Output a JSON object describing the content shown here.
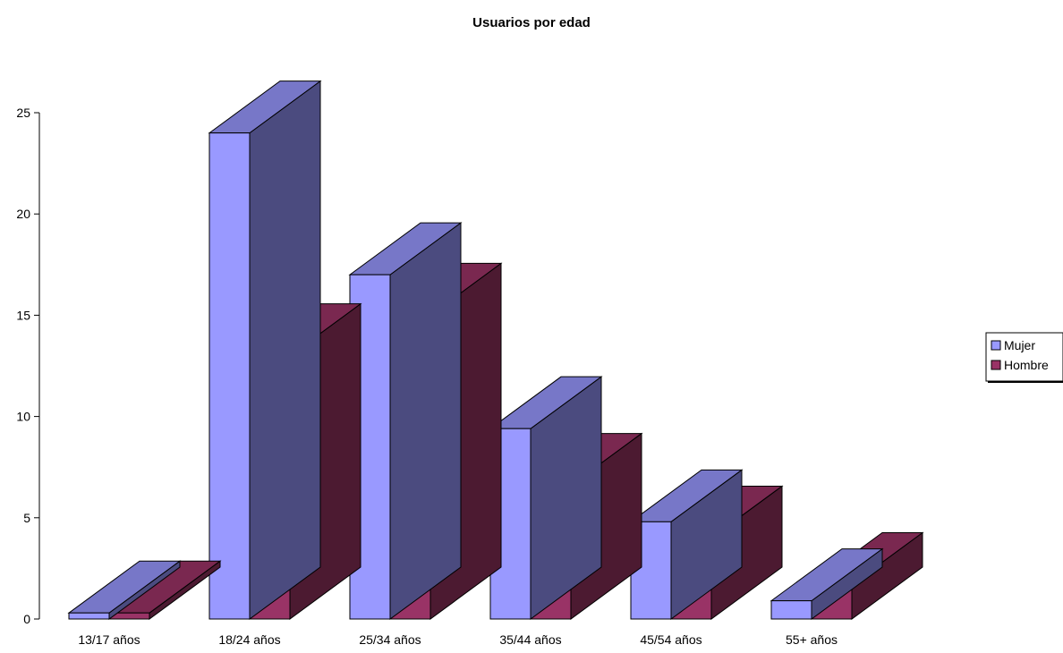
{
  "chart_data": {
    "type": "bar",
    "style": "3d-clustered-column",
    "title": "Usuarios por edad",
    "categories": [
      "13/17 años",
      "18/24 años",
      "25/34 años",
      "35/44 años",
      "45/54 años",
      "55+ años"
    ],
    "series": [
      {
        "name": "Mujer",
        "values": [
          0.3,
          24,
          17,
          9.4,
          4.8,
          0.9
        ],
        "colors": {
          "front": "#9999ff",
          "top": "#7777c8",
          "side": "#4b4b7f"
        }
      },
      {
        "name": "Hombre",
        "values": [
          0.3,
          13,
          15,
          6.6,
          4,
          1.7
        ],
        "colors": {
          "front": "#993366",
          "top": "#7a2850",
          "side": "#4c1a31"
        }
      }
    ],
    "y_ticks": [
      0,
      5,
      10,
      15,
      20,
      25
    ],
    "ylim": [
      0,
      25
    ],
    "grid": false,
    "legend": "right"
  }
}
